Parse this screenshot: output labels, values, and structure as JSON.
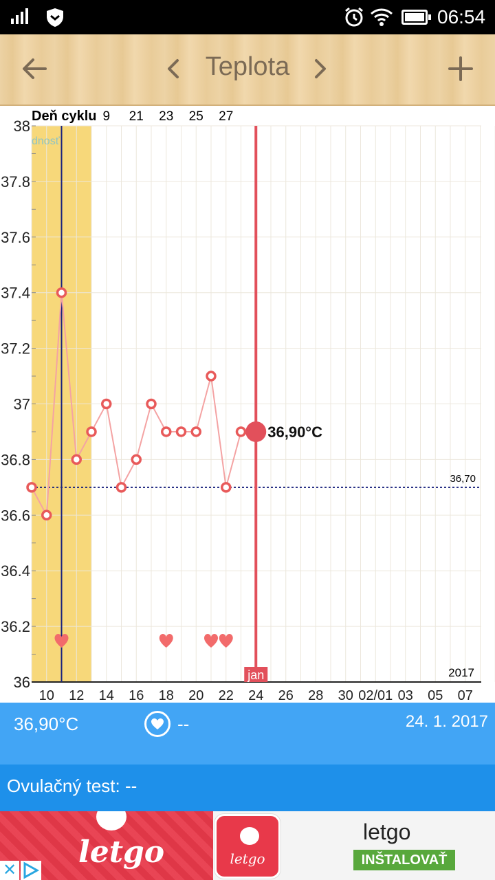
{
  "status_bar": {
    "time": "06:54",
    "icons": [
      "signal-icon",
      "shield-icon",
      "alarm-icon",
      "wifi-icon",
      "battery-icon"
    ]
  },
  "app_bar": {
    "title": "Teplota",
    "back_icon": "arrow-left-icon",
    "prev_icon": "chevron-left-icon",
    "next_icon": "chevron-right-icon",
    "add_icon": "plus-icon"
  },
  "chart_data": {
    "type": "line",
    "cycle_label": "Deň cyklu",
    "cycle_ticks": [
      "9",
      "21",
      "23",
      "25",
      "27"
    ],
    "phase_label": "dnosť",
    "x_tick_labels": [
      "10",
      "12",
      "14",
      "16",
      "18",
      "20",
      "22",
      "24",
      "26",
      "28",
      "30",
      "02/01",
      "03",
      "05",
      "07"
    ],
    "y_tick_labels": [
      "38",
      "37.8",
      "37.6",
      "37.4",
      "37.2",
      "37",
      "36.8",
      "36.6",
      "36.4",
      "36.2",
      "36"
    ],
    "ylim": [
      36,
      38
    ],
    "x_start_day": 9,
    "days_visible": 31,
    "series": [
      {
        "x": [
          9,
          10,
          11,
          12,
          13,
          14,
          15,
          16,
          17,
          18,
          19,
          20,
          21,
          22,
          23
        ],
        "values": [
          36.7,
          36.6,
          37.4,
          36.8,
          36.9,
          37.0,
          36.7,
          36.8,
          37.0,
          36.9,
          36.9,
          36.9,
          37.1,
          36.7,
          36.9
        ]
      }
    ],
    "selected": {
      "x": 24,
      "value": 36.9,
      "label": "36,90°C"
    },
    "baseline": {
      "value": 36.7,
      "label": "36,70"
    },
    "period_days": [
      9,
      12
    ],
    "marker_day": 11,
    "heart_days": [
      11,
      18,
      21,
      22
    ],
    "month_label": "jan",
    "year_label": "2017",
    "grid": true,
    "colors": {
      "line": "#f4a3a3",
      "point": "#e85a5a",
      "selected": "#e2505b",
      "period": "#f7d87a",
      "marker": "#1a237e",
      "baseline": "#1a237e",
      "heart": "#f26b6b"
    }
  },
  "info_bar": {
    "temperature": "36,90°C",
    "heart_value": "--",
    "date": "24. 1. 2017"
  },
  "ovulation": {
    "text": "Ovulačný test: --"
  },
  "ad": {
    "brand": "letgo",
    "logo_text": "letgo",
    "app_name": "letgo",
    "install_label": "INŠTALOVAŤ",
    "close_label": "✕"
  }
}
